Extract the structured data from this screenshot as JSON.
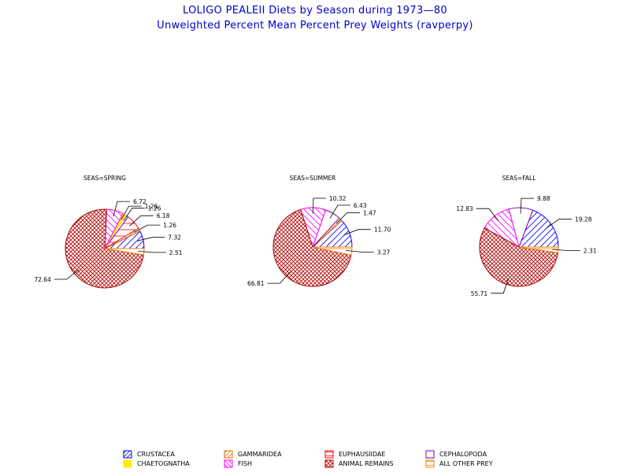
{
  "title": "LOLIGO PEALEII Diets by Season during 1973—80",
  "subtitle": "Unweighted Percent Mean Percent Prey  Weights (ravperpy)",
  "colors": {
    "title": "#0000cc"
  },
  "legend": [
    {
      "name": "CRUSTACEA",
      "color": "#0000ff",
      "pattern": "diag"
    },
    {
      "name": "GAMMARIDEA",
      "color": "#e07000",
      "pattern": "diag"
    },
    {
      "name": "EUPHAUSIIDAE",
      "color": "#ff0000",
      "pattern": "hlines"
    },
    {
      "name": "CEPHALOPODA",
      "color": "#8000a0",
      "pattern": "empty"
    },
    {
      "name": "CHAETOGNATHA",
      "color": "#ffee00",
      "pattern": "solid"
    },
    {
      "name": "FISH",
      "color": "#ff00ff",
      "pattern": "diag2"
    },
    {
      "name": "ANIMAL REMAINS",
      "color": "#b00000",
      "pattern": "cross"
    },
    {
      "name": "ALL  OTHER PREY",
      "color": "#ff8000",
      "pattern": "hlines"
    }
  ],
  "chart_data": [
    {
      "type": "pie",
      "title": "SEAS=SPRING",
      "slices": [
        {
          "category": "CRUSTACEA",
          "value": 7.32,
          "label": "7.32"
        },
        {
          "category": "GAMMARIDEA",
          "value": 1.26,
          "label": "1.26"
        },
        {
          "category": "EUPHAUSIIDAE",
          "value": 6.18,
          "label": "6.18"
        },
        {
          "category": "CEPHALOPODA",
          "value": 1.26,
          "label": "1.26"
        },
        {
          "category": "CHAETOGNATHA",
          "value": 1.26,
          "label": "1.26"
        },
        {
          "category": "FISH",
          "value": 6.72,
          "label": "6.72"
        },
        {
          "category": "ANIMAL REMAINS",
          "value": 72.64,
          "label": "72.64"
        },
        {
          "category": "ALL  OTHER PREY",
          "value": 2.51,
          "label": "2.51"
        }
      ]
    },
    {
      "type": "pie",
      "title": "SEAS=SUMMER",
      "slices": [
        {
          "category": "CRUSTACEA",
          "value": 11.7,
          "label": "11.70"
        },
        {
          "category": "GAMMARIDEA",
          "value": 1.47,
          "label": "1.47"
        },
        {
          "category": "CEPHALOPODA",
          "value": 6.43,
          "label": "6.43"
        },
        {
          "category": "FISH",
          "value": 10.32,
          "label": "10.32"
        },
        {
          "category": "ANIMAL REMAINS",
          "value": 66.81,
          "label": "66.81"
        },
        {
          "category": "ALL  OTHER PREY",
          "value": 3.27,
          "label": "3.27"
        }
      ]
    },
    {
      "type": "pie",
      "title": "SEAS=FALL",
      "slices": [
        {
          "category": "CRUSTACEA",
          "value": 19.28,
          "label": "19.28"
        },
        {
          "category": "CEPHALOPODA",
          "value": 9.88,
          "label": "9.88"
        },
        {
          "category": "FISH",
          "value": 12.83,
          "label": "12.83"
        },
        {
          "category": "ANIMAL REMAINS",
          "value": 55.71,
          "label": "55.71"
        },
        {
          "category": "ALL  OTHER PREY",
          "value": 2.31,
          "label": "2.31"
        }
      ]
    }
  ]
}
